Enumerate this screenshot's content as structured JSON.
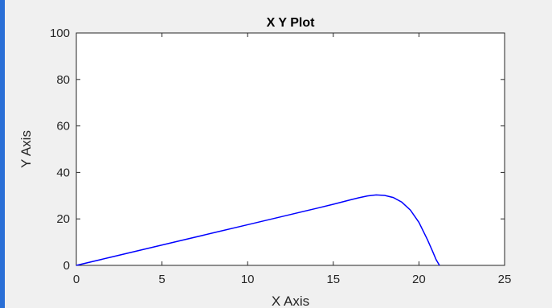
{
  "chart_data": {
    "type": "line",
    "title": "X Y Plot",
    "xlabel": "X Axis",
    "ylabel": "Y Axis",
    "xlim": [
      0,
      25
    ],
    "ylim": [
      0,
      100
    ],
    "xticks": [
      0,
      5,
      10,
      15,
      20,
      25
    ],
    "yticks": [
      0,
      20,
      40,
      60,
      80,
      100
    ],
    "xtick_labels": [
      "0",
      "5",
      "10",
      "15",
      "20",
      "25"
    ],
    "ytick_labels": [
      "0",
      "20",
      "40",
      "60",
      "80",
      "100"
    ],
    "grid": false,
    "line_color": "#0000ff",
    "series": [
      {
        "x": [
          0,
          2,
          4,
          6,
          8,
          10,
          12,
          14,
          15,
          16,
          16.5,
          17,
          17.5,
          18,
          18.5,
          19,
          19.5,
          20,
          20.5,
          20.8,
          21,
          21.2
        ],
        "y": [
          0,
          3.5,
          7,
          10.5,
          14,
          17.5,
          21,
          24.5,
          26.3,
          28.2,
          29.1,
          29.9,
          30.3,
          30.1,
          29.2,
          27.2,
          23.8,
          18.5,
          11,
          6,
          2.5,
          0
        ]
      }
    ]
  }
}
